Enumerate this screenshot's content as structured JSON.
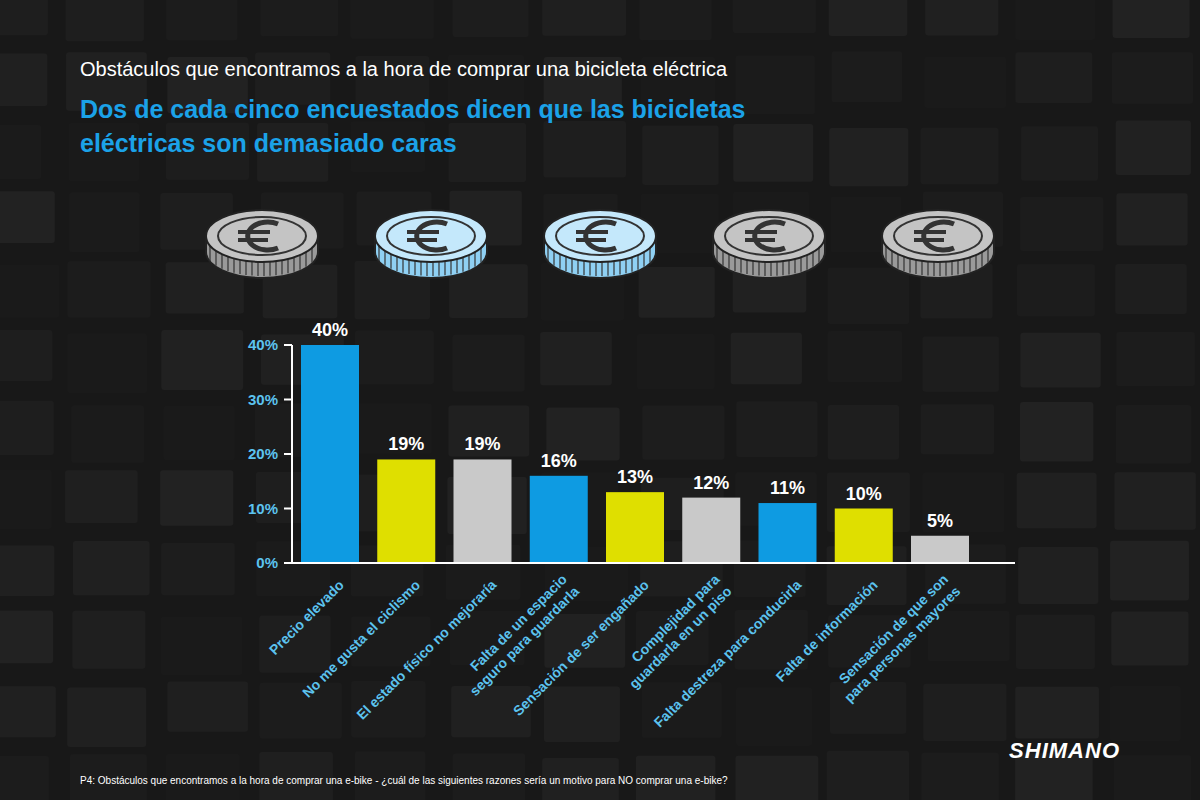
{
  "chart_data": {
    "type": "bar",
    "title": "Obstáculos que encontramos a la hora de comprar una bicicleta eléctrica",
    "subtitle": "Dos de cada cinco encuestados dicen que las bicicletas eléctricas son demasiado caras",
    "categories": [
      "Precio elevado",
      "No me gusta el ciclismo",
      "El estado físico no mejoraría",
      "Falta de un espacio seguro para guardarla",
      "Sensación de ser engañado",
      "Complejidad para guardarla en un piso",
      "Falta destreza para conducirla",
      "Falta de información",
      "Sensación de que son para personas mayores"
    ],
    "values": [
      40,
      19,
      19,
      16,
      13,
      12,
      11,
      10,
      5
    ],
    "value_labels": [
      "40%",
      "19%",
      "19%",
      "16%",
      "13%",
      "12%",
      "11%",
      "10%",
      "5%"
    ],
    "colors": [
      "#0e9be2",
      "#dfdf00",
      "#c9c9c9",
      "#0e9be2",
      "#dfdf00",
      "#c9c9c9",
      "#0e9be2",
      "#dfdf00",
      "#c9c9c9"
    ],
    "ylim": [
      0,
      40
    ],
    "yticks": [
      {
        "value": 0,
        "label": "0%"
      },
      {
        "value": 10,
        "label": "10%"
      },
      {
        "value": 20,
        "label": "20%"
      },
      {
        "value": 30,
        "label": "30%"
      },
      {
        "value": 40,
        "label": "40%"
      }
    ],
    "grid": false,
    "data_labels": true,
    "note": "P4: Obstáculos que encontramos a la hora de comprar una e-bike - ¿cuál de las siguientes razones sería un motivo para NO comprar una e-bike?",
    "logo": "SHIMANO"
  }
}
